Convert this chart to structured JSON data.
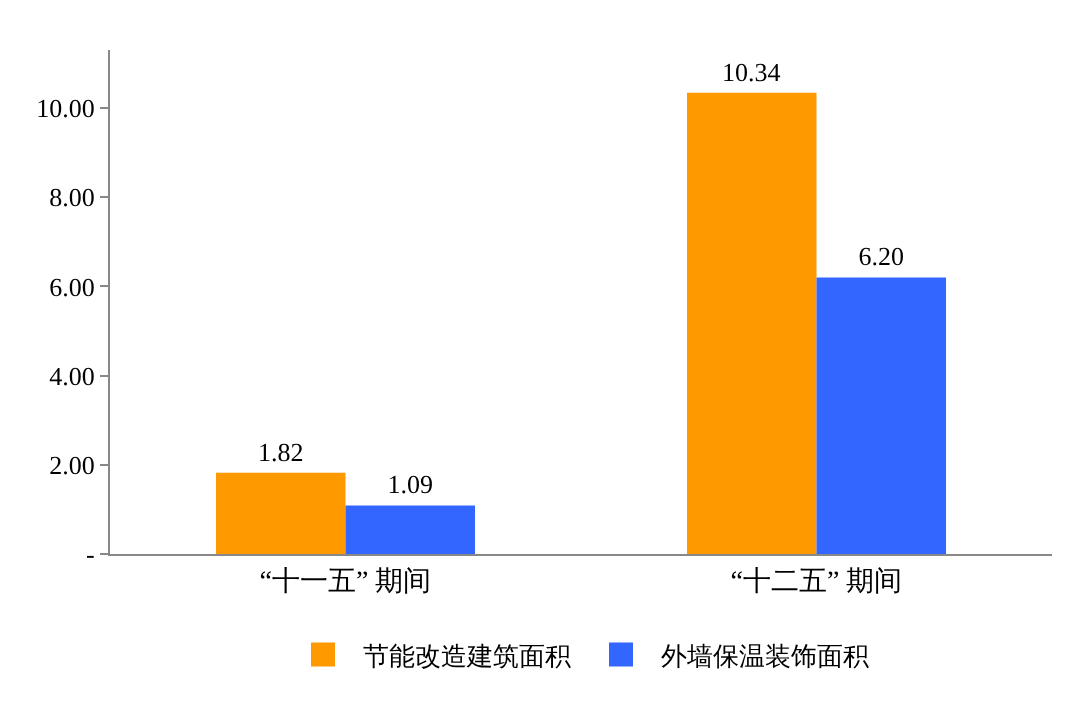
{
  "chart_data": {
    "type": "bar",
    "categories": [
      "“十一五” 期间",
      "“十二五” 期间"
    ],
    "series": [
      {
        "name": "节能改造建筑面积",
        "color": "#ff9900",
        "values": [
          1.82,
          10.34
        ],
        "value_labels": [
          "1.82",
          "10.34"
        ]
      },
      {
        "name": "外墙保温装饰面积",
        "color": "#3366ff",
        "values": [
          1.09,
          6.2
        ],
        "value_labels": [
          "1.09",
          "6.20"
        ]
      }
    ],
    "ylim": [
      0,
      11.3
    ],
    "yticks": [
      {
        "value": 0,
        "label": "-"
      },
      {
        "value": 2,
        "label": "2.00"
      },
      {
        "value": 4,
        "label": "4.00"
      },
      {
        "value": 6,
        "label": "6.00"
      },
      {
        "value": 8,
        "label": "8.00"
      },
      {
        "value": 10,
        "label": "10.00"
      }
    ],
    "legend": "bottom"
  }
}
